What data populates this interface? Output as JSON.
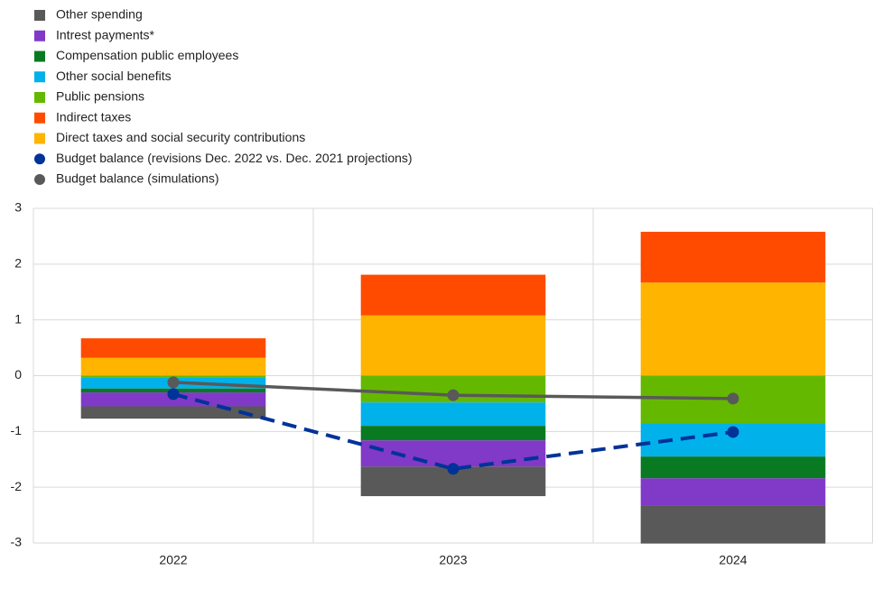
{
  "chart_data": {
    "type": "bar",
    "stacked": true,
    "categories": [
      "2022",
      "2023",
      "2024"
    ],
    "series": [
      {
        "name": "Other spending",
        "color": "#595959",
        "values": [
          -0.22,
          -0.53,
          -0.68
        ]
      },
      {
        "name": "Intrest payments*",
        "color": "#8139c7",
        "values": [
          -0.25,
          -0.47,
          -0.49
        ]
      },
      {
        "name": "Compensation public employees",
        "color": "#0a7a22",
        "values": [
          -0.07,
          -0.26,
          -0.39
        ]
      },
      {
        "name": "Other social benefits",
        "color": "#00b1ea",
        "values": [
          -0.2,
          -0.42,
          -0.6
        ]
      },
      {
        "name": "Public pensions",
        "color": "#65b800",
        "values": [
          -0.03,
          -0.48,
          -0.85
        ]
      },
      {
        "name": "Indirect taxes",
        "color": "#ff4b00",
        "values": [
          0.35,
          0.73,
          0.91
        ]
      },
      {
        "name": "Direct taxes and social security contributions",
        "color": "#ffb400",
        "values": [
          0.32,
          1.08,
          1.67
        ]
      },
      {
        "name": "Budget balance (revisions Dec. 2022 vs. Dec. 2021 projections)",
        "color": "#003299",
        "type": "line",
        "dashed": true,
        "values": [
          -0.33,
          -1.67,
          -1.01
        ]
      },
      {
        "name": "Budget balance (simulations)",
        "color": "#595959",
        "type": "line",
        "dashed": false,
        "values": [
          -0.12,
          -0.35,
          -0.41
        ]
      }
    ],
    "ylim": [
      -3,
      3
    ],
    "yticks": [
      -3,
      -2,
      -1,
      0,
      1,
      2,
      3
    ],
    "grid": true
  }
}
